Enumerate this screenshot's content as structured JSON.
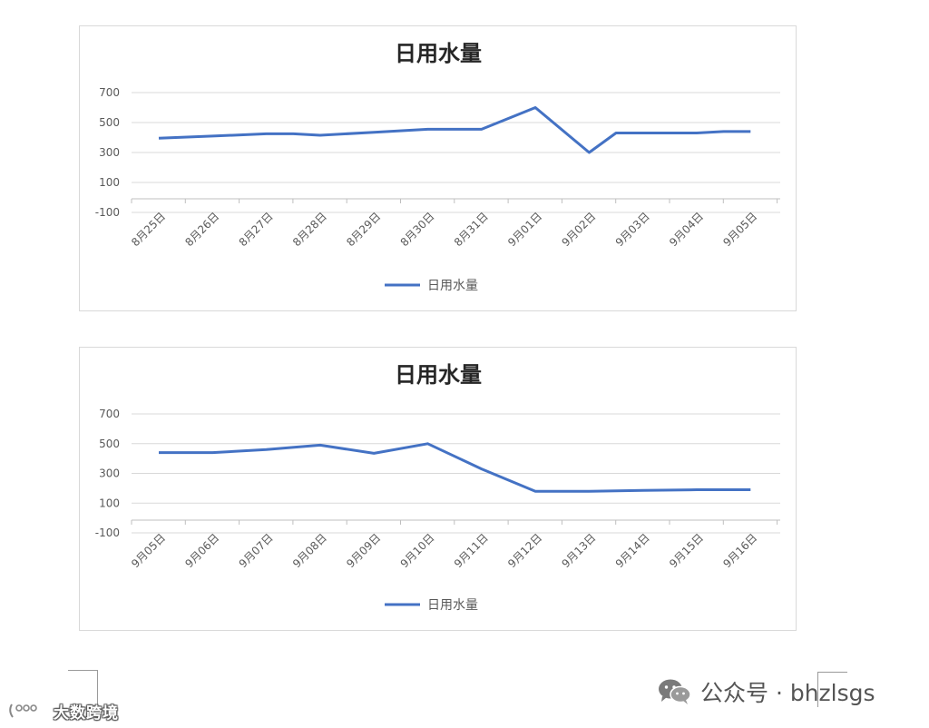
{
  "charts_meta": {
    "line_color": "#4472c4",
    "grid_color": "#d9d9d9",
    "axis_color": "#bfbfbf",
    "text_color": "#595959",
    "title_color": "#262626"
  },
  "chart_data": [
    {
      "type": "line",
      "title": "日用水量",
      "categories": [
        "8月25日",
        "8月26日",
        "8月27日",
        "8月28日",
        "8月29日",
        "8月30日",
        "8月31日",
        "9月01日",
        "9月02日",
        "9月03日",
        "9月04日",
        "9月05日"
      ],
      "series": [
        {
          "name": "日用水量",
          "x": [
            0,
            1,
            2,
            2.5,
            3,
            4,
            5,
            6,
            7,
            8,
            8.5,
            9,
            10,
            10.5,
            11
          ],
          "values": [
            395,
            410,
            425,
            425,
            415,
            435,
            455,
            455,
            600,
            300,
            430,
            430,
            430,
            440,
            440
          ]
        }
      ],
      "yticks": [
        700,
        500,
        300,
        100,
        -100
      ],
      "ylim": [
        -100,
        700
      ],
      "grid": true,
      "legend": "bottom"
    },
    {
      "type": "line",
      "title": "日用水量",
      "categories": [
        "9月05日",
        "9月06日",
        "9月07日",
        "9月08日",
        "9月09日",
        "9月10日",
        "9月11日",
        "9月12日",
        "9月13日",
        "9月14日",
        "9月15日",
        "9月16日"
      ],
      "series": [
        {
          "name": "日用水量",
          "x": [
            0,
            1,
            2,
            3,
            4,
            5,
            6,
            7,
            8,
            9,
            10,
            11
          ],
          "values": [
            440,
            440,
            460,
            490,
            435,
            500,
            330,
            180,
            180,
            185,
            190,
            190
          ]
        }
      ],
      "yticks": [
        700,
        500,
        300,
        100,
        -100
      ],
      "ylim": [
        -100,
        700
      ],
      "grid": true,
      "legend": "bottom"
    }
  ],
  "watermark": {
    "left_text": "大数跨境",
    "right_text": "公众号 · bhzlsgs",
    "wechat_icon": "wechat-icon",
    "logo_icon": "dashu-logo-icon"
  }
}
